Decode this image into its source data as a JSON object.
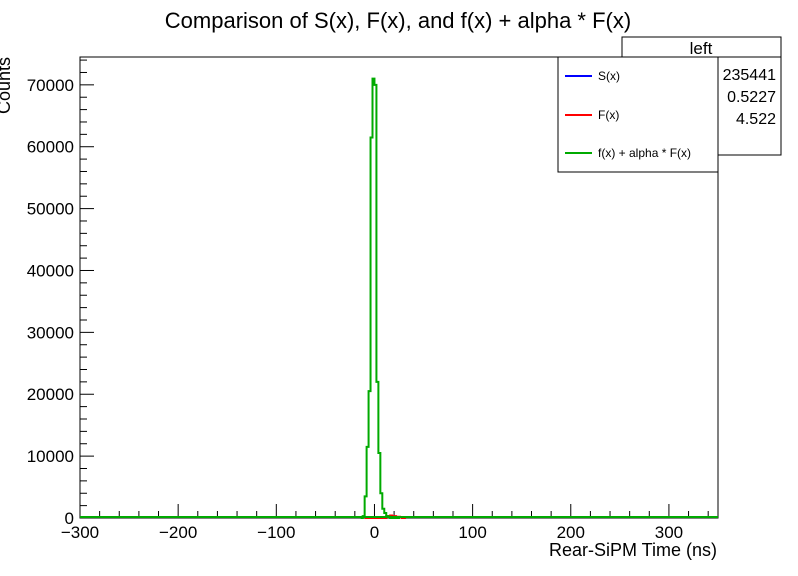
{
  "chart_data": {
    "type": "line",
    "title": "Comparison of S(x), F(x), and f(x) + alpha * F(x)",
    "xlabel": "Rear-SiPM Time (ns)",
    "ylabel": "Counts",
    "xlim": [
      -300,
      350
    ],
    "ylim": [
      0,
      74500
    ],
    "xticks": [
      -300,
      -200,
      -100,
      0,
      100,
      200,
      300
    ],
    "xtick_labels": [
      "−300",
      "−200",
      "−100",
      "0",
      "100",
      "200",
      "300"
    ],
    "yticks": [
      0,
      10000,
      20000,
      30000,
      40000,
      50000,
      60000,
      70000
    ],
    "ytick_labels": [
      "0",
      "10000",
      "20000",
      "30000",
      "40000",
      "50000",
      "60000",
      "70000"
    ],
    "grid": false,
    "legend_position": "top-right",
    "series": [
      {
        "name": "S(x)",
        "color": "#0000ff",
        "x": [],
        "y": []
      },
      {
        "name": "F(x)",
        "color": "#ff0000",
        "x": [
          -10,
          -8,
          -6,
          -4,
          -2,
          0,
          2,
          4,
          6,
          8,
          10,
          12,
          14,
          16,
          18,
          20,
          22,
          24,
          26,
          28,
          30
        ],
        "y": [
          0,
          0,
          0,
          0,
          0,
          0,
          0,
          0,
          0,
          0,
          0,
          300,
          300,
          400,
          300,
          300,
          200,
          200,
          100,
          0,
          0
        ]
      },
      {
        "name": "f(x) + alpha * F(x)",
        "color": "#00aa00",
        "x": [
          -14,
          -12,
          -10,
          -8,
          -6,
          -4,
          -2,
          0,
          2,
          4,
          6,
          8,
          10,
          12,
          14,
          16,
          18,
          20,
          22,
          24
        ],
        "y": [
          0,
          300,
          3500,
          11500,
          20500,
          61500,
          71000,
          70000,
          22000,
          10500,
          4000,
          1500,
          800,
          300,
          200,
          0,
          0,
          0,
          0,
          0
        ]
      }
    ]
  },
  "stats_box": {
    "title": "left",
    "values": [
      "235441",
      "0.5227",
      "4.522"
    ]
  },
  "legend": {
    "entries": [
      {
        "label": "S(x)",
        "color": "#0000ff"
      },
      {
        "label": "F(x)",
        "color": "#ff0000"
      },
      {
        "label": "f(x) + alpha * F(x)",
        "color": "#00aa00"
      }
    ]
  }
}
